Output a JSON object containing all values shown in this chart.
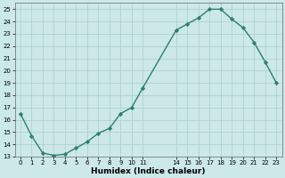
{
  "x": [
    0,
    1,
    2,
    3,
    4,
    5,
    6,
    7,
    8,
    9,
    10,
    11,
    14,
    15,
    16,
    17,
    18,
    19,
    20,
    21,
    22,
    23
  ],
  "y": [
    16.5,
    14.7,
    13.3,
    13.1,
    13.2,
    13.7,
    14.2,
    14.9,
    15.3,
    16.5,
    17.0,
    18.6,
    23.3,
    23.8,
    24.3,
    25.0,
    25.0,
    24.2,
    23.5,
    22.3,
    20.7,
    19.0
  ],
  "line_color": "#2d7f6e",
  "marker": "D",
  "marker_size": 2.2,
  "bg_color": "#cce8e8",
  "grid_color": "#aacece",
  "xlabel": "Humidex (Indice chaleur)",
  "xlim": [
    -0.5,
    23.5
  ],
  "ylim": [
    13,
    25.5
  ],
  "yticks": [
    13,
    14,
    15,
    16,
    17,
    18,
    19,
    20,
    21,
    22,
    23,
    24,
    25
  ],
  "ytick_labels": [
    "13",
    "14",
    "15",
    "16",
    "17",
    "18",
    "19",
    "20",
    "21",
    "22",
    "23",
    "24",
    "25"
  ],
  "xtick_positions": [
    0,
    1,
    2,
    3,
    4,
    5,
    6,
    7,
    8,
    9,
    10,
    11,
    14,
    15,
    16,
    17,
    18,
    19,
    20,
    21,
    22,
    23
  ],
  "xtick_labels": [
    "0",
    "1",
    "2",
    "3",
    "4",
    "5",
    "6",
    "7",
    "8",
    "9",
    "1011",
    "",
    "14",
    "1516",
    "1718",
    "1920",
    "2122",
    "23",
    "",
    "",
    "",
    ""
  ],
  "line_width": 1.0
}
